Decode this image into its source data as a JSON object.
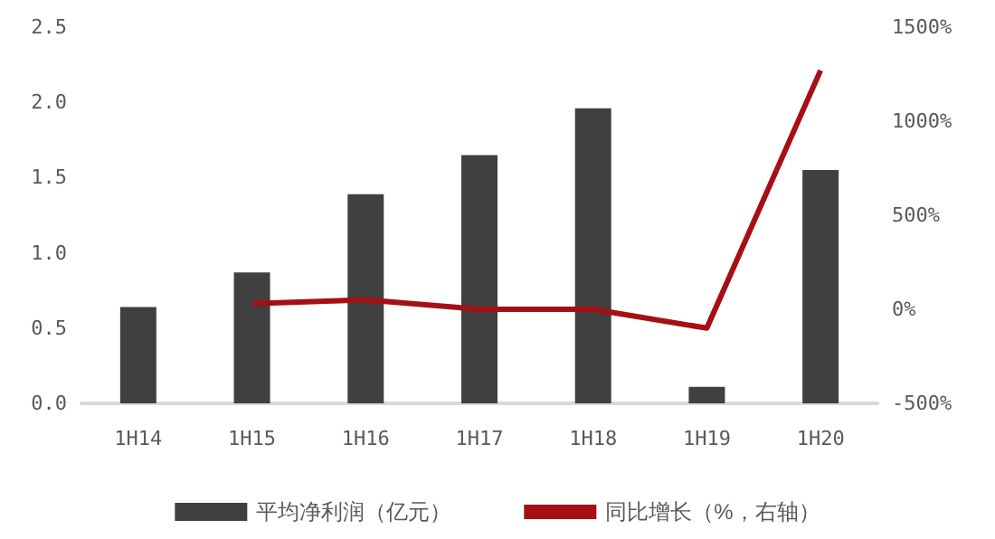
{
  "chart_data": {
    "type": "bar",
    "categories": [
      "1H14",
      "1H15",
      "1H16",
      "1H17",
      "1H18",
      "1H19",
      "1H20"
    ],
    "series": [
      {
        "name": "平均净利润（亿元）",
        "color": "#404040",
        "values": [
          0.64,
          0.87,
          1.39,
          1.65,
          1.96,
          0.11,
          1.55
        ]
      },
      {
        "name": "同比增长（%，右轴）",
        "type": "line",
        "axis": "y2",
        "color": "#a50f15",
        "values": [
          null,
          30,
          50,
          0,
          0,
          -100,
          1270
        ]
      }
    ],
    "ylim": [
      0,
      2.5
    ],
    "yticks": [
      {
        "value": 0,
        "label": "0.0"
      },
      {
        "value": 0.5,
        "label": "0.5"
      },
      {
        "value": 1,
        "label": "1.0"
      },
      {
        "value": 1.5,
        "label": "1.5"
      },
      {
        "value": 2,
        "label": "2.0"
      },
      {
        "value": 2.5,
        "label": "2.5"
      }
    ],
    "y2lim": [
      -500,
      1500
    ],
    "y2ticks": [
      {
        "value": -500,
        "label": "-500%"
      },
      {
        "value": 0,
        "label": "0%"
      },
      {
        "value": 500,
        "label": "500%"
      },
      {
        "value": 1000,
        "label": "1000%"
      },
      {
        "value": 1500,
        "label": "1500%"
      }
    ],
    "grid": false,
    "legend": "bottom",
    "marker": "none"
  }
}
